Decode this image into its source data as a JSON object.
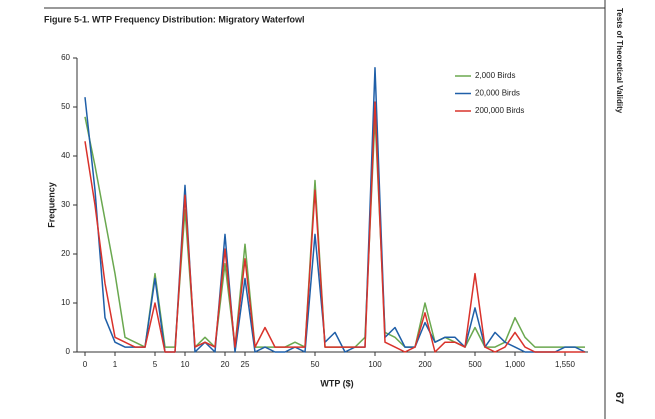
{
  "page": {
    "running_head": "Tests of Theoretical Validity",
    "page_number": "67"
  },
  "chart_data": {
    "type": "line",
    "title": "Figure 5-1. WTP Frequency Distribution: Migratory Waterfowl",
    "x_label": "WTP ($)",
    "y_label": "Frequency",
    "categories": [
      "0",
      null,
      null,
      "1",
      null,
      null,
      null,
      "5",
      null,
      null,
      "10",
      null,
      null,
      null,
      "20",
      null,
      "25",
      null,
      null,
      null,
      null,
      null,
      null,
      "50",
      null,
      null,
      null,
      null,
      null,
      "100",
      null,
      null,
      null,
      null,
      "200",
      null,
      null,
      null,
      null,
      "500",
      null,
      null,
      null,
      "1,000",
      null,
      null,
      null,
      null,
      "1,550",
      null,
      null
    ],
    "series": [
      {
        "name": "2,000 Birds",
        "color": "#6aa84f",
        "values": [
          48,
          38,
          27,
          16,
          3,
          2,
          1,
          16,
          1,
          1,
          29,
          1,
          3,
          1,
          18,
          1,
          22,
          1,
          1,
          1,
          1,
          2,
          1,
          35,
          1,
          1,
          1,
          1,
          3,
          48,
          4,
          3,
          1,
          1,
          10,
          2,
          3,
          2,
          1,
          5,
          1,
          1,
          2,
          7,
          3,
          1,
          1,
          1,
          1,
          1,
          1
        ]
      },
      {
        "name": "20,000 Birds",
        "color": "#1f5fa8",
        "values": [
          52,
          33,
          7,
          2,
          1,
          1,
          1,
          15,
          0,
          0,
          34,
          0,
          2,
          0,
          24,
          0,
          15,
          0,
          1,
          0,
          0,
          1,
          0,
          24,
          2,
          4,
          0,
          1,
          1,
          58,
          3,
          5,
          1,
          1,
          6,
          2,
          3,
          3,
          1,
          9,
          1,
          4,
          2,
          1,
          0,
          0,
          0,
          0,
          1,
          1,
          0
        ]
      },
      {
        "name": "200,000 Birds",
        "color": "#d9322b",
        "values": [
          43,
          30,
          14,
          3,
          2,
          1,
          1,
          10,
          0,
          0,
          32,
          1,
          2,
          1,
          21,
          1,
          19,
          1,
          5,
          1,
          1,
          1,
          1,
          33,
          1,
          1,
          1,
          1,
          1,
          51,
          2,
          1,
          0,
          1,
          8,
          0,
          2,
          2,
          1,
          16,
          1,
          0,
          1,
          4,
          1,
          0,
          0,
          0,
          0,
          0,
          0
        ]
      }
    ],
    "ylim": [
      0,
      60
    ],
    "yticks": [
      0,
      10,
      20,
      30,
      40,
      50,
      60
    ],
    "grid": false,
    "legend": "upper-right"
  }
}
